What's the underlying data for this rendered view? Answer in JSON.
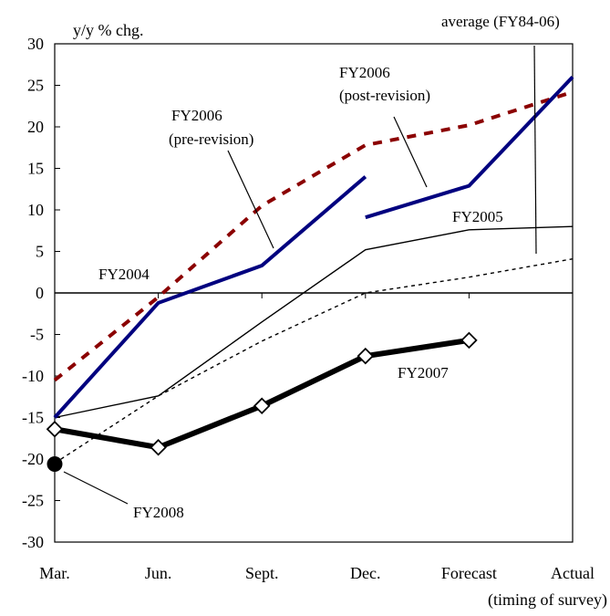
{
  "chart_data": {
    "type": "line",
    "ylabel": "y/y % chg.",
    "xlabel": "(timing of survey)",
    "categories": [
      "Mar.",
      "Jun.",
      "Sept.",
      "Dec.",
      "Forecast",
      "Actual"
    ],
    "ylim": [
      -30,
      30
    ],
    "yticks": [
      30,
      25,
      20,
      15,
      10,
      5,
      0,
      -5,
      -10,
      -15,
      -20,
      -25,
      -30
    ],
    "grid": false,
    "series": [
      {
        "name": "FY2004",
        "style": "dashed",
        "color": "#8b0000",
        "values": [
          -10.5,
          -0.5,
          10.5,
          17.8,
          20.2,
          24.2
        ]
      },
      {
        "name": "FY2006 (pre-revision)",
        "style": "solid-thick",
        "color": "#00007f",
        "values": [
          -15.0,
          -1.2,
          3.3,
          14.0,
          null,
          null
        ]
      },
      {
        "name": "FY2006 (post-revision)",
        "style": "solid-thick",
        "color": "#00007f",
        "values": [
          null,
          null,
          null,
          9.1,
          12.9,
          26.0
        ]
      },
      {
        "name": "FY2005",
        "style": "solid-thin",
        "color": "#000000",
        "values": [
          -15.0,
          -12.4,
          -3.5,
          5.2,
          7.6,
          8.0
        ]
      },
      {
        "name": "average (FY84-06)",
        "style": "dotted",
        "color": "#000000",
        "values": [
          -20.5,
          -12.4,
          -5.8,
          0.0,
          1.9,
          4.1
        ]
      },
      {
        "name": "FY2007",
        "style": "solid-bold-diamond",
        "color": "#000000",
        "values": [
          -16.4,
          -18.6,
          -13.6,
          -7.6,
          -5.7,
          null
        ]
      },
      {
        "name": "FY2008",
        "style": "filled-circle",
        "color": "#000000",
        "values": [
          -20.6,
          null,
          null,
          null,
          null,
          null
        ]
      }
    ],
    "annotations": {
      "fy2004": "FY2004",
      "fy2005": "FY2005",
      "fy2006_pre_line1": "FY2006",
      "fy2006_pre_line2": "(pre-revision)",
      "fy2006_post_line1": "FY2006",
      "fy2006_post_line2": "(post-revision)",
      "fy2007": "FY2007",
      "fy2008": "FY2008",
      "average": "average (FY84-06)"
    }
  }
}
